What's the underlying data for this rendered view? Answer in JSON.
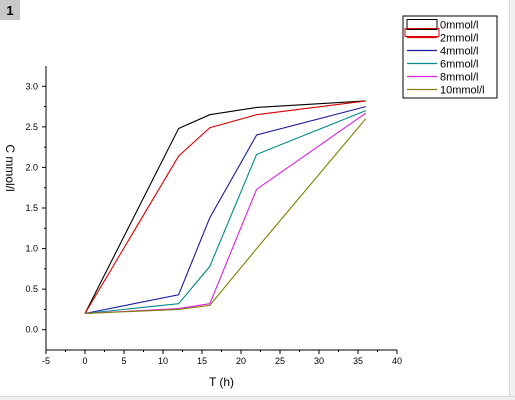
{
  "layer_tab": {
    "label": "1"
  },
  "colors": {
    "axis": "#000000",
    "window_edge": "#f0f0f0"
  },
  "chart_data": {
    "type": "line",
    "title": "",
    "xlabel": "T (h)",
    "ylabel": "C mmol/l",
    "xlim": [
      -5,
      40
    ],
    "ylim": [
      -0.25,
      3.25
    ],
    "xticks": [
      -5,
      0,
      5,
      10,
      15,
      20,
      25,
      30,
      35,
      40
    ],
    "yticks": [
      0.0,
      0.5,
      1.0,
      1.5,
      2.0,
      2.5,
      3.0
    ],
    "xtick_labels": [
      "-5",
      "0",
      "5",
      "10",
      "15",
      "20",
      "25",
      "30",
      "35",
      "40"
    ],
    "ytick_labels": [
      "0.0",
      "0.5",
      "1.0",
      "1.5",
      "2.0",
      "2.5",
      "3.0"
    ],
    "grid": false,
    "legend_position": "top-right",
    "series": [
      {
        "name": "0mmol/l",
        "color": "#000000",
        "x": [
          0,
          12,
          16,
          22,
          36
        ],
        "y": [
          0.2,
          2.48,
          2.65,
          2.74,
          2.82
        ]
      },
      {
        "name": "2mmol/l",
        "color": "#dd0000",
        "x": [
          0,
          12,
          16,
          22,
          36
        ],
        "y": [
          0.2,
          2.14,
          2.49,
          2.65,
          2.82
        ]
      },
      {
        "name": "4mmol/l",
        "color": "#1a1aa0",
        "x": [
          0,
          12,
          16,
          22,
          36
        ],
        "y": [
          0.2,
          0.43,
          1.38,
          2.4,
          2.75
        ]
      },
      {
        "name": "6mmol/l",
        "color": "#008a8a",
        "x": [
          0,
          12,
          16,
          22,
          36
        ],
        "y": [
          0.2,
          0.32,
          0.78,
          2.16,
          2.7
        ]
      },
      {
        "name": "8mmol/l",
        "color": "#e020e0",
        "x": [
          0,
          12,
          16,
          22,
          36
        ],
        "y": [
          0.2,
          0.26,
          0.32,
          1.73,
          2.67
        ]
      },
      {
        "name": "10mmol/l",
        "color": "#808000",
        "x": [
          0,
          12,
          16,
          22,
          36
        ],
        "y": [
          0.2,
          0.25,
          0.3,
          1.0,
          2.6
        ]
      }
    ]
  }
}
